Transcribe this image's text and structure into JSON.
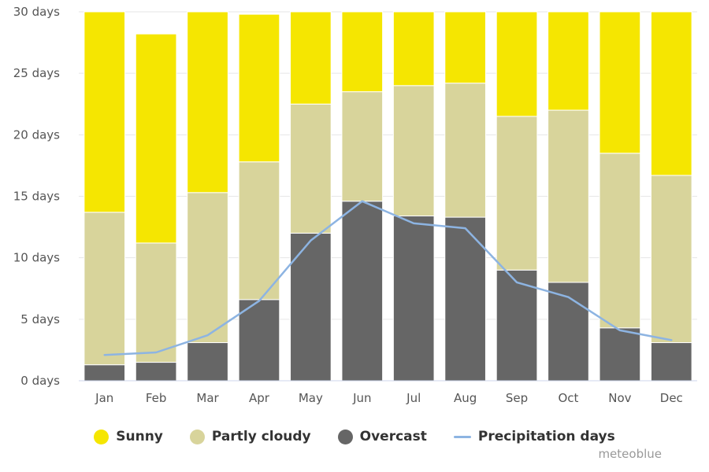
{
  "chart_data": {
    "type": "bar",
    "stacked": true,
    "categories": [
      "Jan",
      "Feb",
      "Mar",
      "Apr",
      "May",
      "Jun",
      "Jul",
      "Aug",
      "Sep",
      "Oct",
      "Nov",
      "Dec"
    ],
    "series": [
      {
        "name": "Overcast",
        "color": "#666666",
        "values": [
          1.3,
          1.5,
          3.1,
          6.6,
          12.0,
          14.6,
          13.4,
          13.3,
          9.0,
          8.0,
          4.3,
          3.1
        ]
      },
      {
        "name": "Partly cloudy",
        "color": "#d8d49b",
        "values": [
          12.4,
          9.7,
          12.2,
          11.2,
          10.5,
          8.9,
          10.6,
          10.9,
          12.5,
          14.0,
          14.2,
          13.6
        ]
      },
      {
        "name": "Sunny",
        "color": "#f5e601",
        "values": [
          17.3,
          17.0,
          15.7,
          12.0,
          8.5,
          6.5,
          7.0,
          6.8,
          8.5,
          9.0,
          12.5,
          14.3
        ]
      }
    ],
    "line_series": {
      "name": "Precipitation days",
      "color": "#8db4e2",
      "values": [
        2.1,
        2.3,
        3.7,
        6.5,
        11.4,
        14.6,
        12.8,
        12.4,
        8.0,
        6.8,
        4.1,
        3.3
      ]
    },
    "y_ticks": [
      "0 days",
      "5 days",
      "10 days",
      "15 days",
      "20 days",
      "25 days",
      "30 days"
    ],
    "ylim": [
      0,
      30
    ],
    "grid": true,
    "legend_position": "bottom-center",
    "title": "",
    "xlabel": "",
    "ylabel": ""
  },
  "credit": "meteoblue"
}
